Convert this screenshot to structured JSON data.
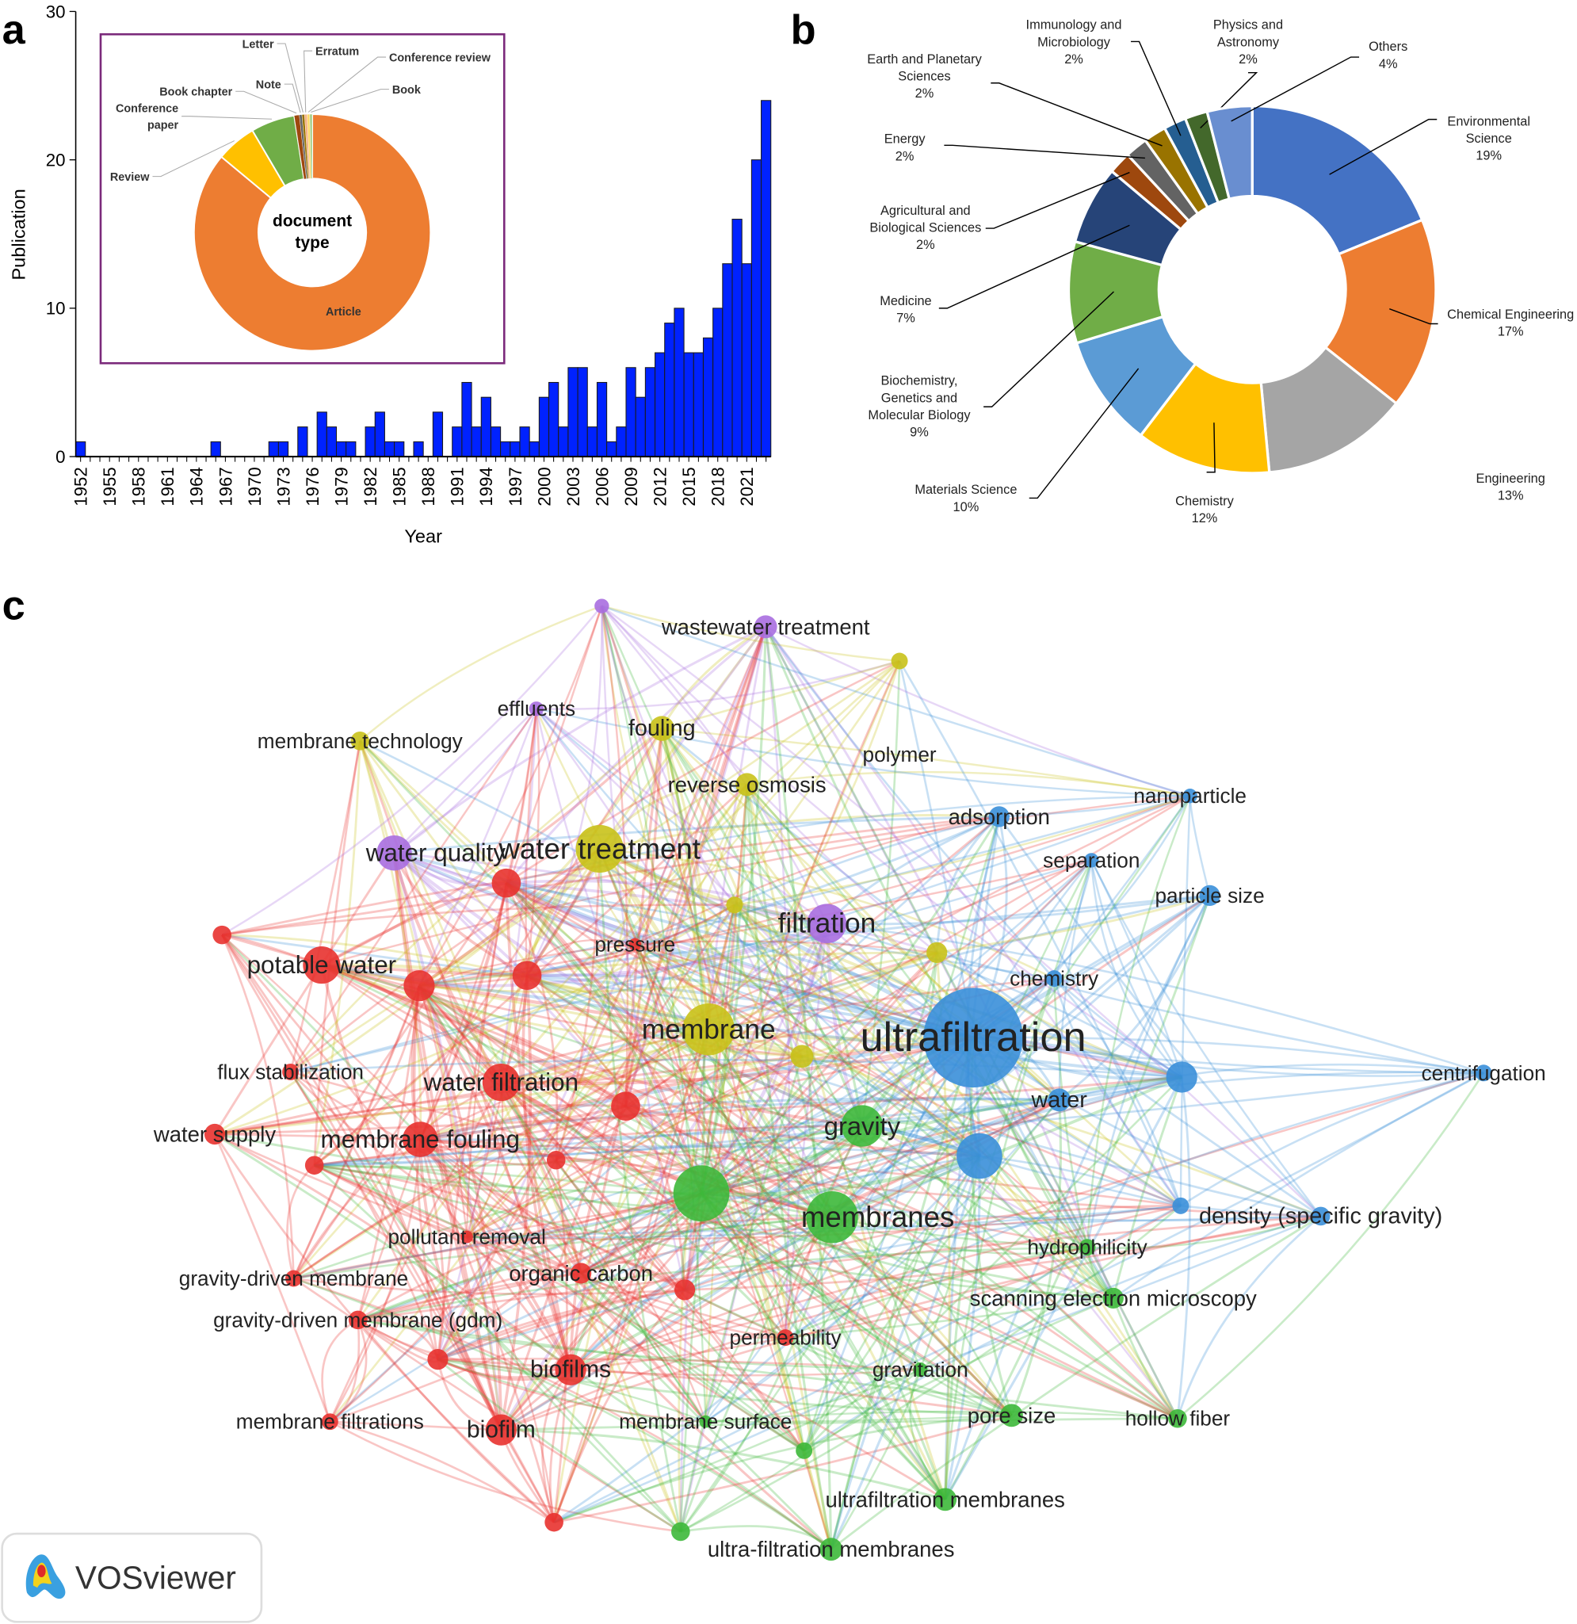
{
  "panel_letters": {
    "a": "a",
    "b": "b",
    "c": "c"
  },
  "chart_data": [
    {
      "type": "bar",
      "panel": "a",
      "xlabel": "Year",
      "ylabel": "Publication",
      "ylim": [
        0,
        30
      ],
      "yticks": [
        0,
        10,
        20,
        30
      ],
      "tick_labels": [
        "1952",
        "1955",
        "1958",
        "1961",
        "1964",
        "1967",
        "1970",
        "1973",
        "1976",
        "1979",
        "1982",
        "1985",
        "1988",
        "1991",
        "1994",
        "1997",
        "2000",
        "2003",
        "2006",
        "2009",
        "2012",
        "2015",
        "2018",
        "2021"
      ],
      "bar_color": "#0022ff",
      "x": [
        1952,
        1953,
        1954,
        1955,
        1956,
        1957,
        1958,
        1959,
        1960,
        1961,
        1962,
        1963,
        1964,
        1965,
        1966,
        1967,
        1968,
        1969,
        1970,
        1971,
        1972,
        1973,
        1974,
        1975,
        1976,
        1977,
        1978,
        1979,
        1980,
        1981,
        1982,
        1983,
        1984,
        1985,
        1986,
        1987,
        1988,
        1989,
        1990,
        1991,
        1992,
        1993,
        1994,
        1995,
        1996,
        1997,
        1998,
        1999,
        2000,
        2001,
        2002,
        2003,
        2004,
        2005,
        2006,
        2007,
        2008,
        2009,
        2010,
        2011,
        2012,
        2013,
        2014,
        2015,
        2016,
        2017,
        2018,
        2019,
        2020,
        2021,
        2022,
        2023
      ],
      "values": [
        1,
        0,
        0,
        0,
        0,
        0,
        0,
        0,
        0,
        0,
        0,
        0,
        0,
        0,
        1,
        0,
        0,
        0,
        0,
        0,
        1,
        1,
        0,
        2,
        0,
        3,
        2,
        1,
        1,
        0,
        2,
        3,
        1,
        1,
        0,
        1,
        0,
        3,
        0,
        2,
        5,
        2,
        4,
        2,
        1,
        1,
        2,
        1,
        4,
        5,
        2,
        6,
        6,
        2,
        5,
        1,
        2,
        6,
        4,
        6,
        7,
        9,
        10,
        7,
        7,
        8,
        10,
        13,
        16,
        13,
        20,
        24
      ]
    },
    {
      "type": "pie",
      "panel": "a-inset",
      "center_label": [
        "document",
        "type"
      ],
      "border_color": "#7b2a7b",
      "slices": [
        {
          "label": "Article",
          "value": 86,
          "color": "#ed7d31"
        },
        {
          "label": "Review",
          "value": 5.5,
          "color": "#ffc000"
        },
        {
          "label": "Conference paper",
          "label_lines": [
            "Conference",
            "paper"
          ],
          "value": 6,
          "color": "#70ad47"
        },
        {
          "label": "Book chapter",
          "value": 0.7,
          "color": "#9e480e"
        },
        {
          "label": "Note",
          "value": 0.35,
          "color": "#636363"
        },
        {
          "label": "Letter",
          "value": 0.35,
          "color": "#997300"
        },
        {
          "label": "Erratum",
          "value": 0.35,
          "color": "#f4b183"
        },
        {
          "label": "Conference review",
          "value": 0.35,
          "color": "#ffd966"
        },
        {
          "label": "Book",
          "value": 0.35,
          "color": "#a9d18e"
        }
      ]
    },
    {
      "type": "pie",
      "panel": "b",
      "slices": [
        {
          "label_lines": [
            "Environmental",
            "Science",
            "19%"
          ],
          "value": 19,
          "color": "#4472c4"
        },
        {
          "label_lines": [
            "Chemical Engineering",
            "17%"
          ],
          "value": 17,
          "color": "#ed7d31"
        },
        {
          "label_lines": [
            "Engineering",
            "13%"
          ],
          "value": 13,
          "color": "#a5a5a5"
        },
        {
          "label_lines": [
            "Chemistry",
            "12%"
          ],
          "value": 12,
          "color": "#ffc000"
        },
        {
          "label_lines": [
            "Materials Science",
            "10%"
          ],
          "value": 10,
          "color": "#5b9bd5"
        },
        {
          "label_lines": [
            "Biochemistry,",
            "Genetics and",
            "Molecular Biology",
            "9%"
          ],
          "value": 9,
          "color": "#70ad47"
        },
        {
          "label_lines": [
            "Medicine",
            "7%"
          ],
          "value": 7,
          "color": "#264478"
        },
        {
          "label_lines": [
            "Agricultural and",
            "Biological Sciences",
            "2%"
          ],
          "value": 2,
          "color": "#9e480e"
        },
        {
          "label_lines": [
            "Energy",
            "2%"
          ],
          "value": 2,
          "color": "#636363"
        },
        {
          "label_lines": [
            "Earth and Planetary",
            "Sciences",
            "2%"
          ],
          "value": 2,
          "color": "#997300"
        },
        {
          "label_lines": [
            "Immunology and",
            "Microbiology",
            "2%"
          ],
          "value": 2,
          "color": "#255e91"
        },
        {
          "label_lines": [
            "Physics and",
            "Astronomy",
            "2%"
          ],
          "value": 2,
          "color": "#43682b"
        },
        {
          "label_lines": [
            "Others",
            "4%"
          ],
          "value": 4,
          "color": "#698ed0"
        }
      ]
    }
  ],
  "network": {
    "cluster_colors": {
      "red": "#e8322f",
      "yellow": "#c9c21a",
      "purple": "#a86ee0",
      "blue": "#3a8fd9",
      "green": "#3db83a"
    },
    "nodes": [
      {
        "label": "ultrafiltration",
        "cluster": "blue"
      },
      {
        "label": "membrane",
        "cluster": "yellow"
      },
      {
        "label": "membranes",
        "cluster": "green"
      },
      {
        "label": "water treatment",
        "cluster": "yellow"
      },
      {
        "label": "gravity",
        "cluster": "green"
      },
      {
        "label": "filtration",
        "cluster": "purple"
      },
      {
        "label": "potable water",
        "cluster": "red"
      },
      {
        "label": "water quality",
        "cluster": "purple"
      },
      {
        "label": "water filtration",
        "cluster": "red"
      },
      {
        "label": "membrane fouling",
        "cluster": "red"
      },
      {
        "label": "biofilms",
        "cluster": "red"
      },
      {
        "label": "biofilm",
        "cluster": "red"
      },
      {
        "label": "wastewater treatment",
        "cluster": "purple"
      },
      {
        "label": "fouling",
        "cluster": "yellow"
      },
      {
        "label": "reverse osmosis",
        "cluster": "yellow"
      },
      {
        "label": "effluents",
        "cluster": "purple"
      },
      {
        "label": "membrane technology",
        "cluster": "yellow"
      },
      {
        "label": "polymer",
        "cluster": "yellow"
      },
      {
        "label": "adsorption",
        "cluster": "blue"
      },
      {
        "label": "nanoparticle",
        "cluster": "blue"
      },
      {
        "label": "separation",
        "cluster": "blue"
      },
      {
        "label": "particle size",
        "cluster": "blue"
      },
      {
        "label": "chemistry",
        "cluster": "blue"
      },
      {
        "label": "water",
        "cluster": "blue"
      },
      {
        "label": "centrifugation",
        "cluster": "blue"
      },
      {
        "label": "density (specific gravity)",
        "cluster": "blue"
      },
      {
        "label": "pressure",
        "cluster": "red"
      },
      {
        "label": "flux stabilization",
        "cluster": "red"
      },
      {
        "label": "water supply",
        "cluster": "red"
      },
      {
        "label": "pollutant removal",
        "cluster": "red"
      },
      {
        "label": "gravity-driven membrane",
        "cluster": "red"
      },
      {
        "label": "gravity-driven membrane (gdm)",
        "cluster": "red"
      },
      {
        "label": "organic carbon",
        "cluster": "red"
      },
      {
        "label": "permeability",
        "cluster": "red"
      },
      {
        "label": "membrane filtrations",
        "cluster": "red"
      },
      {
        "label": "hydrophilicity",
        "cluster": "green"
      },
      {
        "label": "scanning electron microscopy",
        "cluster": "green"
      },
      {
        "label": "gravitation",
        "cluster": "green"
      },
      {
        "label": "pore size",
        "cluster": "green"
      },
      {
        "label": "hollow fiber",
        "cluster": "green"
      },
      {
        "label": "membrane surface",
        "cluster": "green"
      },
      {
        "label": "ultrafiltration membranes",
        "cluster": "green"
      },
      {
        "label": "ultra-filtration membranes",
        "cluster": "green"
      }
    ]
  },
  "logo": {
    "text": "VOSviewer"
  }
}
